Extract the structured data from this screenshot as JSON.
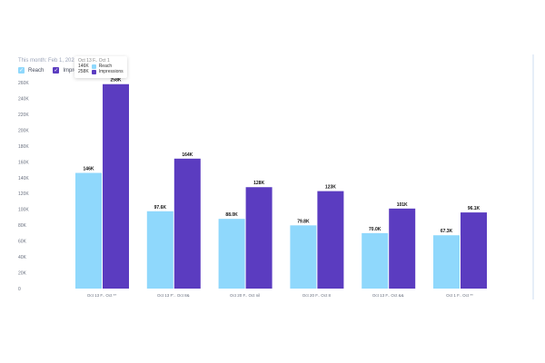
{
  "subtitle": "This month: Feb 1, 2026 – F",
  "legend": [
    {
      "label": "Reach",
      "color": "#8fd8fc"
    },
    {
      "label": "Impressions",
      "color": "#5b3cc0"
    }
  ],
  "tooltip": {
    "title": "Oct 13 F.. Oct 1",
    "rows": [
      {
        "value": "146K",
        "label": "Reach",
        "color": "#8fd8fc"
      },
      {
        "value": "258K",
        "label": "Impressions",
        "color": "#5b3cc0"
      }
    ]
  },
  "chart_data": {
    "type": "bar",
    "categories": [
      "Oct 13 F.. Oct **",
      "Oct 13 F'.. Oct 8&",
      "Oct 20 F.. Oct nil",
      "Oct 20 F.. Oct 8",
      "Oct 13 F.. Oct &&",
      "Oct 1 F.. Oct **"
    ],
    "series": [
      {
        "name": "Reach",
        "color": "#8fd8fc",
        "values": [
          146,
          97.6,
          88.0,
          79.8,
          70.0,
          67.3
        ],
        "labels": [
          "146K",
          "97.6K",
          "88.0K",
          "79.8K",
          "70.0K",
          "67.3K"
        ]
      },
      {
        "name": "Impressions",
        "color": "#5b3cc0",
        "values": [
          258,
          164,
          128,
          123,
          101,
          96.1
        ],
        "labels": [
          "258K",
          "164K",
          "128K",
          "123K",
          "101K",
          "96.1K"
        ]
      }
    ],
    "y_ticks": [
      "0",
      "20K",
      "40K",
      "60K",
      "80K",
      "100K",
      "120K",
      "140K",
      "160K",
      "180K",
      "200K",
      "220K",
      "240K",
      "260K"
    ],
    "ylim": [
      0,
      260
    ],
    "xlabel": "",
    "ylabel": "",
    "grid": false,
    "legend_position": "top-left"
  }
}
